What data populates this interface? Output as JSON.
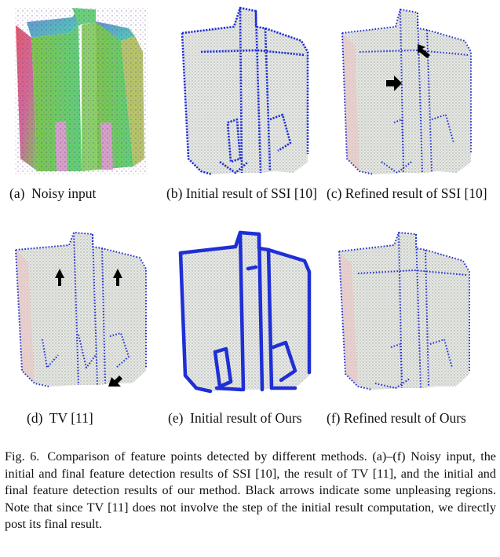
{
  "figure": {
    "label": "Fig. 6.",
    "caption": "Comparison of feature points detected by different methods. (a)–(f) Noisy input, the initial and final feature detection results of SSI [10], the result of TV [11], and the initial and final feature detection results of our method. Black arrows indicate some unpleasing regions. Note that since TV [11] does not involve the step of the initial result computation, we directly post its final result."
  },
  "panels": [
    {
      "id": "a",
      "caption": "(a)  Noisy input",
      "style": "noisy-normals"
    },
    {
      "id": "b",
      "caption": "(b)  Initial  result  of  SSI [10]",
      "style": "initial-features"
    },
    {
      "id": "c",
      "caption": "(c) Refined result of SSI [10]",
      "style": "refined-features",
      "arrows": 2
    },
    {
      "id": "d",
      "caption": "(d)  TV [11]",
      "style": "refined-features",
      "arrows": 3
    },
    {
      "id": "e",
      "caption": "(e)  Initial result of Ours",
      "style": "thick-features"
    },
    {
      "id": "f",
      "caption": "(f)  Refined  result  of Ours",
      "style": "refined-features"
    }
  ],
  "colors": {
    "feature_points": "#1f2fd6",
    "point_cloud": "#d9dcd9",
    "arrow": "#000000"
  }
}
